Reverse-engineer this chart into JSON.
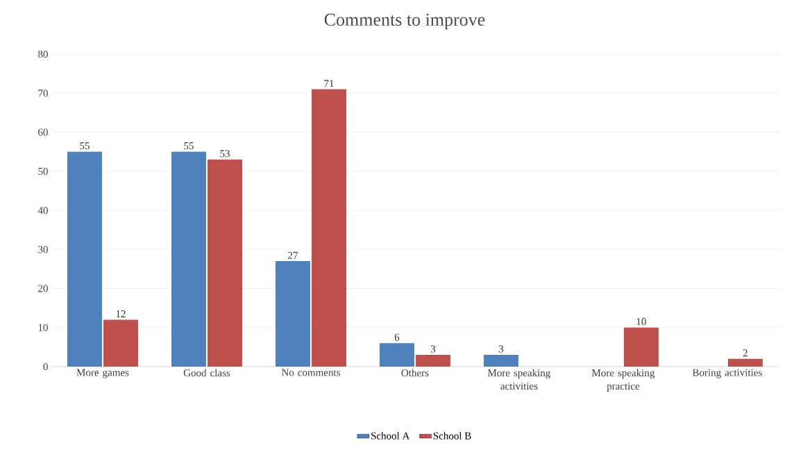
{
  "chart_data": {
    "type": "bar",
    "title": "Comments to improve",
    "categories": [
      "More games",
      "Good class",
      "No comments",
      "Others",
      "More speaking activities",
      "More speaking practice",
      "Boring activities"
    ],
    "series": [
      {
        "name": "School A",
        "color": "#4f81bd",
        "values": [
          55,
          55,
          27,
          6,
          3,
          null,
          null
        ]
      },
      {
        "name": "School B",
        "color": "#c0504d",
        "values": [
          12,
          53,
          71,
          3,
          null,
          10,
          2
        ]
      }
    ],
    "ylim": [
      0,
      80
    ],
    "yticks": [
      0,
      10,
      20,
      30,
      40,
      50,
      60,
      70,
      80
    ],
    "grid": "y",
    "legend": "bottom",
    "data_labels": true
  }
}
